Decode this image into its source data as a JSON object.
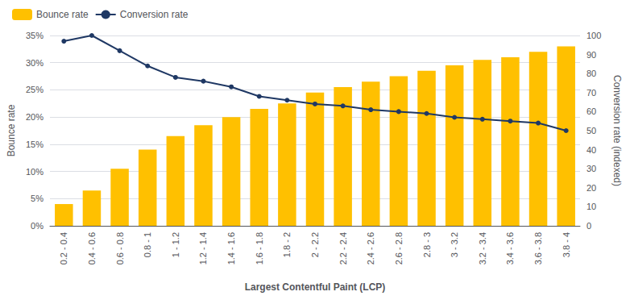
{
  "chart_data": {
    "type": "bar",
    "xlabel": "Largest Contentful Paint (LCP)",
    "ylabel": "Bounce rate",
    "y2label": "Conversion rate (indexed)",
    "categories": [
      "0.2 - 0.4",
      "0.4 - 0.6",
      "0.6 - 0.8",
      "0.8 - 1",
      "1 - 1.2",
      "1.2 - 1.4",
      "1.4 - 1.6",
      "1.6 - 1.8",
      "1.8 - 2",
      "2 - 2.2",
      "2.2 - 2.4",
      "2.4 - 2.6",
      "2.6 - 2.8",
      "2.8 - 3",
      "3 - 3.2",
      "3.2 - 3.4",
      "3.4 - 3.6",
      "3.6 - 3.8",
      "3.8 - 4"
    ],
    "series": [
      {
        "name": "Bounce rate",
        "type": "bar",
        "color": "#FFC000",
        "values": [
          0.04,
          0.065,
          0.105,
          0.14,
          0.165,
          0.185,
          0.2,
          0.215,
          0.225,
          0.245,
          0.255,
          0.265,
          0.275,
          0.285,
          0.295,
          0.305,
          0.31,
          0.32,
          0.33
        ]
      },
      {
        "name": "Conversion rate",
        "type": "line",
        "color": "#1F3864",
        "marker": "circle",
        "axis": "y2",
        "values": [
          97,
          100,
          92,
          84,
          78,
          76,
          73,
          68,
          66,
          64,
          63,
          61,
          60,
          59,
          57,
          56,
          55,
          54,
          50
        ]
      }
    ],
    "ylim": [
      0,
      0.35
    ],
    "yticks": [
      {
        "value": 0,
        "label": "0%"
      },
      {
        "value": 0.05,
        "label": "5%"
      },
      {
        "value": 0.1,
        "label": "10%"
      },
      {
        "value": 0.15,
        "label": "15%"
      },
      {
        "value": 0.2,
        "label": "20%"
      },
      {
        "value": 0.25,
        "label": "25%"
      },
      {
        "value": 0.3,
        "label": "30%"
      },
      {
        "value": 0.35,
        "label": "35%"
      }
    ],
    "y2lim": [
      0,
      100
    ],
    "y2ticks": [
      0,
      10,
      20,
      30,
      40,
      50,
      60,
      70,
      80,
      90,
      100
    ],
    "grid": true,
    "legend": "upper left"
  }
}
